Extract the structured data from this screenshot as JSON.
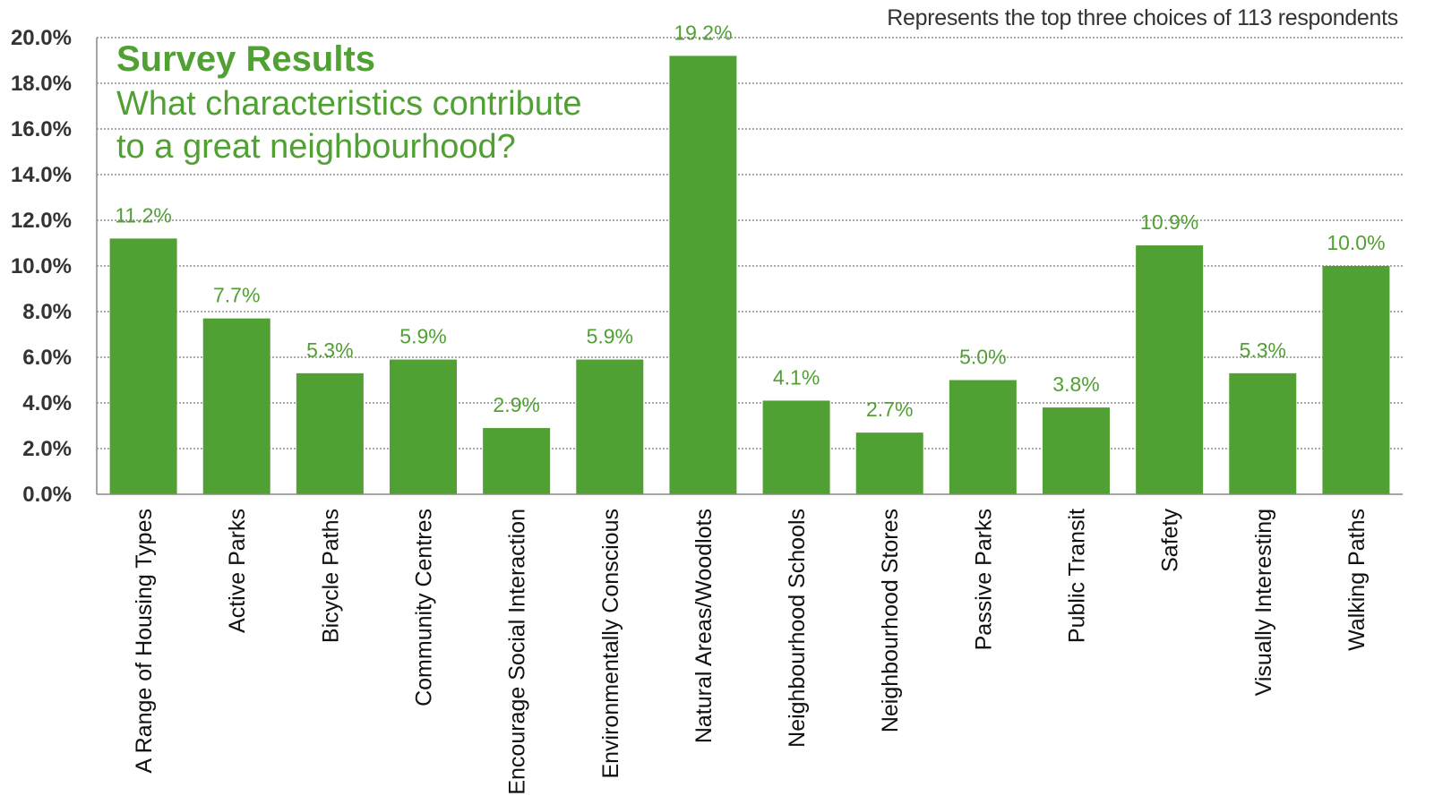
{
  "header": {
    "note": "Represents the top three choices of 113 respondents"
  },
  "chart_data": {
    "type": "bar",
    "title": "Survey Results",
    "subtitle": "What characteristics contribute to a great neighbourhood?",
    "categories": [
      "A Range of Housing Types",
      "Active Parks",
      "Bicycle Paths",
      "Community Centres",
      "Encourage Social Interaction",
      "Environmentally Conscious",
      "Natural Areas/Woodlots",
      "Neighbourhood Schools",
      "Neighbourhood Stores",
      "Passive Parks",
      "Public Transit",
      "Safety",
      "Visually Interesting",
      "Walking Paths"
    ],
    "values": [
      11.2,
      7.7,
      5.3,
      5.9,
      2.9,
      5.9,
      19.2,
      4.1,
      2.7,
      5.0,
      3.8,
      10.9,
      5.3,
      10.0
    ],
    "data_labels": [
      "11.2%",
      "7.7%",
      "5.3%",
      "5.9%",
      "2.9%",
      "5.9%",
      "19.2%",
      "4.1%",
      "2.7%",
      "5.0%",
      "3.8%",
      "10.9%",
      "5.3%",
      "10.0%"
    ],
    "ylim": [
      0,
      20
    ],
    "yticks": [
      "0.0%",
      "2.0%",
      "4.0%",
      "6.0%",
      "8.0%",
      "10.0%",
      "12.0%",
      "14.0%",
      "16.0%",
      "18.0%",
      "20.0%"
    ],
    "xlabel": "",
    "ylabel": "",
    "grid": true,
    "colors": {
      "bar": "#51a033",
      "label": "#51a033",
      "grid": "#555555"
    }
  }
}
